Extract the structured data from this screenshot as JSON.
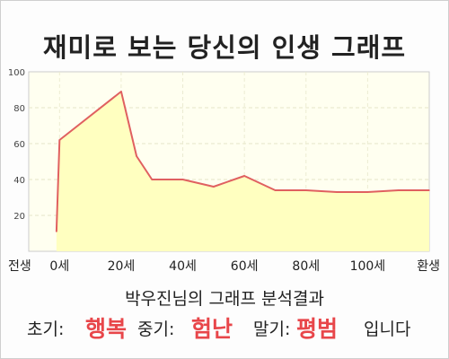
{
  "title": "재미로 보는 당신의 인생 그래프",
  "chart_data": {
    "type": "area",
    "title": "재미로 보는 당신의 인생 그래프",
    "x": [
      -1,
      0,
      20,
      25,
      30,
      40,
      50,
      60,
      70,
      80,
      90,
      100,
      110,
      120
    ],
    "x_tick_values": [
      -10,
      0,
      20,
      40,
      60,
      80,
      100,
      120
    ],
    "x_tick_labels": [
      "전생",
      "0세",
      "20세",
      "40세",
      "60세",
      "80세",
      "100세",
      "환생"
    ],
    "xlim": [
      -10,
      120
    ],
    "series": [
      {
        "values": [
          11,
          62,
          89,
          53,
          40,
          40,
          36,
          42,
          34,
          34,
          33,
          33,
          34,
          34
        ]
      }
    ],
    "y_ticks": [
      20,
      40,
      60,
      80,
      100
    ],
    "ylim": [
      0,
      100
    ],
    "grid": true,
    "line_color": "#e06060",
    "fill_color": "#ffffc0"
  },
  "analysis": {
    "heading": "박우진님의 그래프 분석결과",
    "early_label": "초기:",
    "early_value": "행복",
    "middle_label": "중기:",
    "middle_value": "험난",
    "late_label": "말기:",
    "late_value": "평범",
    "ending": "입니다"
  },
  "colors": {
    "highlight": "#e8464a",
    "plot_bg": "#fffff0"
  }
}
